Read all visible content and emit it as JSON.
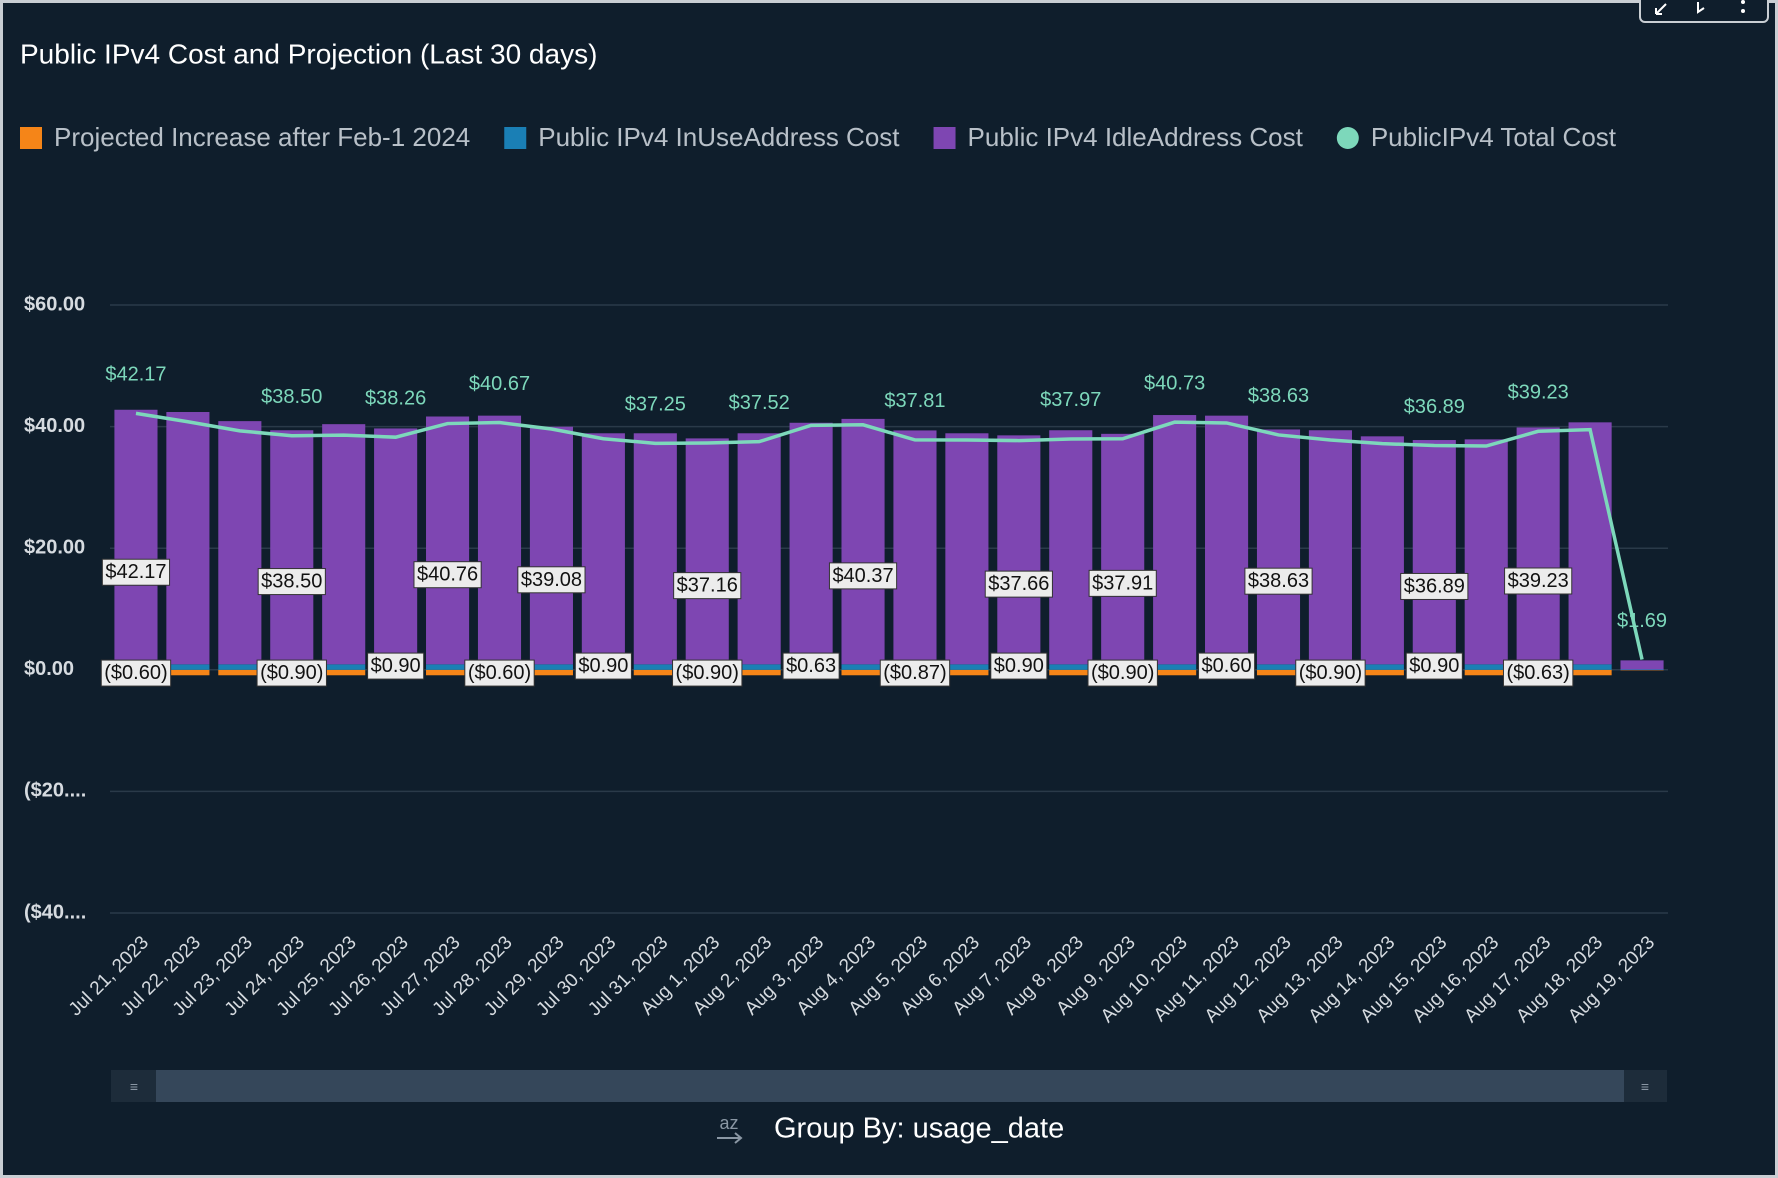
{
  "chart_data": {
    "type": "bar",
    "title": "Public IPv4 Cost and Projection (Last 30 days)",
    "categories": [
      "Jul 21, 2023",
      "Jul 22, 2023",
      "Jul 23, 2023",
      "Jul 24, 2023",
      "Jul 25, 2023",
      "Jul 26, 2023",
      "Jul 27, 2023",
      "Jul 28, 2023",
      "Jul 29, 2023",
      "Jul 30, 2023",
      "Jul 31, 2023",
      "Aug 1, 2023",
      "Aug 2, 2023",
      "Aug 3, 2023",
      "Aug 4, 2023",
      "Aug 5, 2023",
      "Aug 6, 2023",
      "Aug 7, 2023",
      "Aug 8, 2023",
      "Aug 9, 2023",
      "Aug 10, 2023",
      "Aug 11, 2023",
      "Aug 12, 2023",
      "Aug 13, 2023",
      "Aug 14, 2023",
      "Aug 15, 2023",
      "Aug 16, 2023",
      "Aug 17, 2023",
      "Aug 18, 2023",
      "Aug 19, 2023"
    ],
    "series": [
      {
        "name": "Projected Increase after Feb-1 2024",
        "type": "bar",
        "color": "#f58518",
        "values": [
          -0.6,
          -0.9,
          -0.9,
          -0.9,
          -0.9,
          -0.9,
          -0.9,
          -0.6,
          -0.9,
          -0.9,
          -0.9,
          -0.9,
          -0.9,
          -0.63,
          -0.9,
          -0.87,
          -0.9,
          -0.9,
          -0.9,
          -0.9,
          -0.9,
          -0.6,
          -0.9,
          -0.9,
          -0.9,
          -0.9,
          -0.9,
          -0.63,
          -0.9,
          -0.05
        ],
        "value_labels": [
          "($0.60)",
          null,
          null,
          "($0.90)",
          null,
          null,
          null,
          "($0.60)",
          null,
          null,
          null,
          "($0.90)",
          null,
          null,
          null,
          "($0.87)",
          null,
          null,
          null,
          "($0.90)",
          null,
          null,
          null,
          "($0.90)",
          null,
          null,
          null,
          "($0.63)",
          null,
          null
        ]
      },
      {
        "name": "Public IPv4 InUseAddress Cost",
        "type": "bar",
        "color": "#1a7fb5",
        "values": [
          0.6,
          0.9,
          0.9,
          0.9,
          0.9,
          0.9,
          0.9,
          0.6,
          0.9,
          0.9,
          0.9,
          0.9,
          0.9,
          0.63,
          0.9,
          0.87,
          0.9,
          0.9,
          0.9,
          0.9,
          0.9,
          0.6,
          0.9,
          0.9,
          0.9,
          0.9,
          0.9,
          0.63,
          0.9,
          0.05
        ],
        "value_labels": [
          null,
          null,
          null,
          null,
          null,
          "$0.90",
          null,
          null,
          null,
          "$0.90",
          null,
          null,
          null,
          "$0.63",
          null,
          null,
          null,
          "$0.90",
          null,
          null,
          null,
          "$0.60",
          null,
          null,
          null,
          "$0.90",
          null,
          null,
          null,
          null
        ]
      },
      {
        "name": "Public IPv4 IdleAddress Cost",
        "type": "bar",
        "color": "#7e46b2",
        "values": [
          42.17,
          41.5,
          40.0,
          38.5,
          39.5,
          38.8,
          40.76,
          41.2,
          39.08,
          38.0,
          38.0,
          37.16,
          38.0,
          40.0,
          40.37,
          38.5,
          38.0,
          37.66,
          38.5,
          37.91,
          41.0,
          41.2,
          38.63,
          38.5,
          37.5,
          36.89,
          37.0,
          39.23,
          39.8,
          1.5
        ],
        "value_labels": [
          "$42.17",
          null,
          null,
          "$38.50",
          null,
          null,
          "$40.76",
          null,
          "$39.08",
          null,
          null,
          "$37.16",
          null,
          null,
          "$40.37",
          null,
          null,
          "$37.66",
          null,
          "$37.91",
          null,
          null,
          "$38.63",
          null,
          null,
          "$36.89",
          null,
          "$39.23",
          null,
          null
        ]
      },
      {
        "name": "PublicIPv4 Total Cost",
        "type": "line",
        "color": "#7dd8bb",
        "values": [
          42.17,
          40.8,
          39.3,
          38.5,
          38.6,
          38.26,
          40.5,
          40.67,
          39.6,
          38.0,
          37.25,
          37.3,
          37.52,
          40.2,
          40.3,
          37.81,
          37.8,
          37.7,
          37.97,
          38.0,
          40.73,
          40.6,
          38.63,
          37.8,
          37.2,
          36.89,
          36.8,
          39.23,
          39.5,
          1.69
        ],
        "value_labels": [
          "$42.17",
          null,
          null,
          "$38.50",
          null,
          "$38.26",
          null,
          "$40.67",
          null,
          null,
          "$37.25",
          null,
          "$37.52",
          null,
          null,
          "$37.81",
          null,
          null,
          "$37.97",
          null,
          "$40.73",
          null,
          "$38.63",
          null,
          null,
          "$36.89",
          null,
          "$39.23",
          null,
          "$1.69"
        ]
      }
    ],
    "ylim": [
      -40,
      60
    ],
    "yticks": [
      {
        "value": 60,
        "label": "$60.00"
      },
      {
        "value": 40,
        "label": "$40.00"
      },
      {
        "value": 20,
        "label": "$20.00"
      },
      {
        "value": 0,
        "label": "$0.00"
      },
      {
        "value": -20,
        "label": "($20...."
      },
      {
        "value": -40,
        "label": "($40...."
      }
    ],
    "grid": true,
    "legend": "top"
  },
  "footer": {
    "sort_icon": "az",
    "group_by": "Group By: usage_date"
  }
}
